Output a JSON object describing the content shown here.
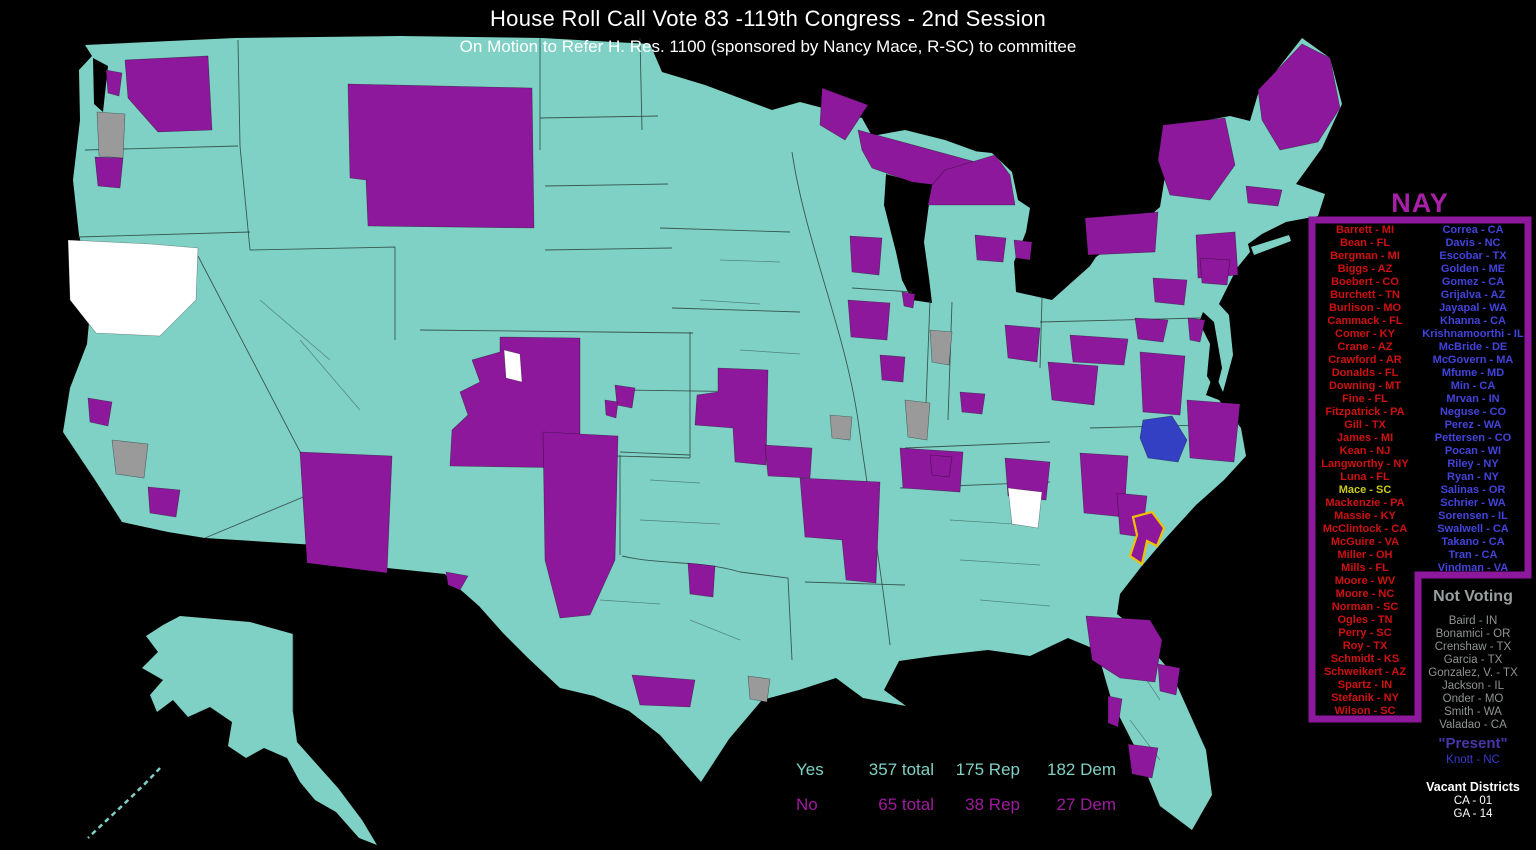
{
  "title": "House Roll Call Vote 83 -119th Congress - 2nd Session",
  "subtitle": "On Motion to Refer H. Res. 1100 (sponsored by Nancy Mace, R-SC) to committee",
  "nay": {
    "header": "NAY",
    "highlighted_member": "Mace - SC",
    "republicans": [
      "Barrett - MI",
      "Bean - FL",
      "Bergman - MI",
      "Biggs - AZ",
      "Boebert - CO",
      "Burchett - TN",
      "Burlison - MO",
      "Cammack - FL",
      "Comer - KY",
      "Crane - AZ",
      "Crawford - AR",
      "Donalds - FL",
      "Downing - MT",
      "Fine - FL",
      "Fitzpatrick - PA",
      "Gill - TX",
      "James - MI",
      "Kean - NJ",
      "Langworthy - NY",
      "Luna - FL",
      "Mace - SC",
      "Mackenzie - PA",
      "Massie - KY",
      "McClintock - CA",
      "McGuire - VA",
      "Miller - OH",
      "Mills - FL",
      "Moore - WV",
      "Moore - NC",
      "Norman - SC",
      "Ogles - TN",
      "Perry - SC",
      "Roy - TX",
      "Schmidt - KS",
      "Schweikert - AZ",
      "Spartz - IN",
      "Stefanik - NY",
      "Wilson - SC"
    ],
    "democrats": [
      "Correa - CA",
      "Davis - NC",
      "Escobar - TX",
      "Golden - ME",
      "Gomez - CA",
      "Grijalva - AZ",
      "Jayapal - WA",
      "Khanna - CA",
      "Krishnamoorthi - IL",
      "McBride - DE",
      "McGovern - MA",
      "Mfume - MD",
      "Min - CA",
      "Mrvan - IN",
      "Neguse - CO",
      "Perez - WA",
      "Pettersen - CO",
      "Pocan - WI",
      "Riley - NY",
      "Ryan - NY",
      "Salinas - OR",
      "Schrier - WA",
      "Sorensen - IL",
      "Swalwell - CA",
      "Takano - CA",
      "Tran - CA",
      "Vindman - VA"
    ]
  },
  "not_voting": {
    "header": "Not Voting",
    "members": [
      "Baird - IN",
      "Bonamici - OR",
      "Crenshaw - TX",
      "Garcia - TX",
      "Gonzalez, V. - TX",
      "Jackson - IL",
      "Onder - MO",
      "Smith - WA",
      "Valadao - CA"
    ]
  },
  "present": {
    "header": "\"Present\"",
    "members": [
      "Knott - NC"
    ]
  },
  "vacant": {
    "header": "Vacant Districts",
    "districts": [
      "CA - 01",
      "GA - 14"
    ]
  },
  "totals": {
    "yes": {
      "label": "Yes",
      "total": "357 total",
      "rep": "175 Rep",
      "dem": "182 Dem"
    },
    "no": {
      "label": "No",
      "total": "65 total",
      "rep": "38 Rep",
      "dem": "27 Dem"
    }
  },
  "legend_semantics": {
    "teal": "Yes vote district",
    "purple": "No (NAY) vote district",
    "gray": "Not voting district",
    "white": "Vacant district",
    "blue": "Voted Present district",
    "yellow_outline": "Sponsor district (Mace - SC)"
  },
  "colors": {
    "map-yes": "#7fd1c5",
    "map-no": "#8e189b",
    "map-nv": "#9a9a9a",
    "map-vacant": "#ffffff",
    "map-present": "#3440c4",
    "highlight": "#eec200",
    "highlight-text": "#c9c91c",
    "nay-header": "#a81fa8",
    "rep-red": "#d01010",
    "dem-blue": "#4343dd",
    "nv-header": "#9aa0a0",
    "nv-text": "#8f9494",
    "present-header": "#4636a8",
    "present-text": "#3939cc",
    "no-text": "#a01a9e"
  }
}
